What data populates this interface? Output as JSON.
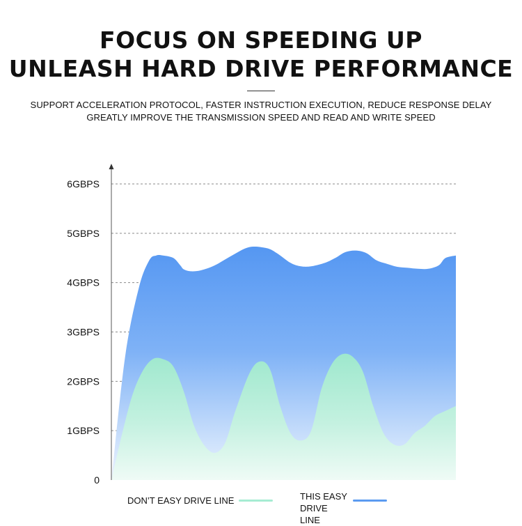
{
  "header": {
    "title_line1": "FOCUS ON SPEEDING UP",
    "title_line2": "UNLEASH HARD DRIVE PERFORMANCE",
    "subtitle_line1": "SUPPORT ACCELERATION PROTOCOL, FASTER INSTRUCTION EXECUTION, REDUCE RESPONSE DELAY",
    "subtitle_line2": "GREATLY IMPROVE THE TRANSMISSION SPEED AND READ AND WRITE SPEED"
  },
  "chart_data": {
    "type": "area",
    "ylim": [
      0,
      6
    ],
    "xlim": [
      0,
      100
    ],
    "y_ticks": [
      {
        "value": 0,
        "label": "0"
      },
      {
        "value": 1,
        "label": "1GBPS"
      },
      {
        "value": 2,
        "label": "2GBPS"
      },
      {
        "value": 3,
        "label": "3GBPS"
      },
      {
        "value": 4,
        "label": "4GBPS"
      },
      {
        "value": 5,
        "label": "5GBPS"
      },
      {
        "value": 6,
        "label": "6GBPS"
      }
    ],
    "grid": true,
    "legend_placement": "bottom",
    "series": [
      {
        "name": "THIS EASY DRIVE LINE",
        "color": "#5b9bf0",
        "x": [
          0,
          4,
          8,
          11,
          13,
          15,
          18,
          20,
          21,
          23,
          26,
          30,
          35,
          40,
          45,
          48,
          52,
          55,
          58,
          62,
          65,
          68,
          71,
          74,
          77,
          80,
          83,
          86,
          89,
          92,
          95,
          97,
          100
        ],
        "y": [
          0,
          2.5,
          3.9,
          4.45,
          4.55,
          4.55,
          4.5,
          4.35,
          4.27,
          4.23,
          4.25,
          4.35,
          4.55,
          4.72,
          4.7,
          4.6,
          4.4,
          4.33,
          4.33,
          4.4,
          4.5,
          4.62,
          4.65,
          4.6,
          4.45,
          4.38,
          4.32,
          4.3,
          4.28,
          4.28,
          4.35,
          4.5,
          4.55
        ]
      },
      {
        "name": "DON'T EASY DRIVE LINE",
        "color": "#a6ecd2",
        "x": [
          0,
          3,
          6,
          9,
          12,
          15,
          18,
          21,
          24,
          27,
          30,
          33,
          36,
          40,
          43,
          46,
          49,
          52,
          55,
          58,
          61,
          64,
          67,
          70,
          73,
          76,
          79,
          82,
          85,
          88,
          91,
          94,
          97,
          100
        ],
        "y": [
          0,
          0.9,
          1.7,
          2.2,
          2.45,
          2.45,
          2.3,
          1.8,
          1.1,
          0.7,
          0.55,
          0.75,
          1.4,
          2.15,
          2.4,
          2.25,
          1.5,
          0.95,
          0.8,
          1.0,
          1.85,
          2.35,
          2.55,
          2.5,
          2.2,
          1.5,
          0.95,
          0.72,
          0.72,
          0.95,
          1.1,
          1.3,
          1.4,
          1.5
        ]
      }
    ]
  },
  "legend": {
    "series1_label": "DON’T EASY DRIVE LINE",
    "series2_label_line1": "THIS EASY",
    "series2_label_line2": "DRIVE LINE"
  }
}
